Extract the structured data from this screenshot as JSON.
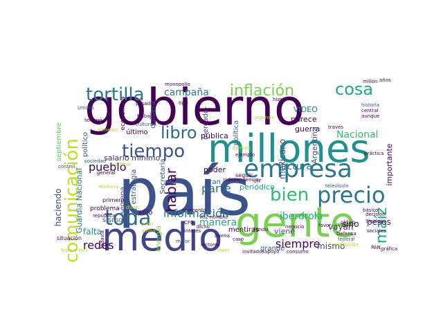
{
  "palette": [
    "#440154",
    "#472c7a",
    "#3b518b",
    "#2c718e",
    "#21908d",
    "#27ad81",
    "#5cc863",
    "#aadc32",
    "#fde725"
  ],
  "words": [
    {
      "text": "país",
      "color": "#3b528b"
    },
    {
      "text": "gobierno",
      "color": "#440154"
    },
    {
      "text": "millones",
      "color": "#21918c"
    },
    {
      "text": "gente",
      "color": "#7ad151"
    },
    {
      "text": "medio",
      "color": "#414487"
    },
    {
      "text": "empresa",
      "color": "#2a788e"
    },
    {
      "text": "comunicación",
      "color": "#bddf26"
    },
    {
      "text": "precio",
      "color": "#2a788e"
    },
    {
      "text": "toda",
      "color": "#31688e"
    },
    {
      "text": "tortilla",
      "color": "#2a788e"
    },
    {
      "text": "tiempo",
      "color": "#3b528b"
    },
    {
      "text": "bien",
      "color": "#35b779"
    },
    {
      "text": "inflación",
      "color": "#7ad151"
    },
    {
      "text": "cosa",
      "color": "#22a884"
    },
    {
      "text": "libro",
      "color": "#31688e"
    },
    {
      "text": "maíz",
      "color": "#22a884"
    },
    {
      "text": "hablar",
      "color": "#440154"
    },
    {
      "text": "información",
      "color": "#2a788e"
    },
    {
      "text": "pueblo",
      "color": "#440154"
    },
    {
      "text": "campaña",
      "color": "#2a788e"
    },
    {
      "text": "parte",
      "color": "#31688e"
    },
    {
      "text": "redes",
      "color": "#440154"
    },
    {
      "text": "siempre",
      "color": "#440154"
    },
    {
      "text": "manera",
      "color": "#22a884"
    },
    {
      "text": "lectura",
      "color": "#2a788e"
    },
    {
      "text": "Nacional",
      "color": "#35b779"
    },
    {
      "text": "iberdrola",
      "color": "#22a884"
    },
    {
      "text": "mexicano",
      "color": "#3b528b"
    },
    {
      "text": "mismo",
      "color": "#414487"
    },
    {
      "text": "sino",
      "color": "#440154"
    },
    {
      "text": "vayan",
      "color": "#472d7b"
    },
    {
      "text": "pesos",
      "color": "#482878"
    },
    {
      "text": "haciendo",
      "color": "#414487"
    },
    {
      "text": "Guardia Nacional",
      "color": "#2a788e"
    },
    {
      "text": "falta",
      "color": "#21918c"
    },
    {
      "text": "estrategia",
      "color": "#3b528b"
    },
    {
      "text": "salario mínimo",
      "color": "#472d7b"
    },
    {
      "text": "último",
      "color": "#440154"
    },
    {
      "text": "sólo",
      "color": "#440154"
    },
    {
      "text": "septiembre",
      "color": "#5ec962"
    },
    {
      "text": "político",
      "color": "#3b528b"
    },
    {
      "text": "económica",
      "color": "#440154"
    },
    {
      "text": "quisiera",
      "color": "#3b528b"
    },
    {
      "text": "mercado",
      "color": "#414487"
    },
    {
      "text": "pública",
      "color": "#440154"
    },
    {
      "text": "política",
      "color": "#31688e"
    },
    {
      "text": "periódico",
      "color": "#22a884"
    },
    {
      "text": "Secretaría",
      "color": "#3b528b"
    },
    {
      "text": "poder",
      "color": "#440154"
    },
    {
      "text": "gran",
      "color": "#3b528b"
    },
    {
      "text": "mentiras",
      "color": "#440154"
    },
    {
      "text": "viene",
      "color": "#3b528b"
    },
    {
      "text": "grande",
      "color": "#3b528b"
    },
    {
      "text": "VIDEO",
      "color": "#2a788e"
    },
    {
      "text": "parece",
      "color": "#440154"
    },
    {
      "text": "guerra",
      "color": "#440154"
    },
    {
      "text": "Argentina",
      "color": "#3b528b"
    },
    {
      "text": "importante",
      "color": "#440154"
    },
    {
      "text": "Unidos",
      "color": "#3b528b"
    },
    {
      "text": "semana",
      "color": "#3b528b"
    },
    {
      "text": "sismo",
      "color": "#3b528b"
    },
    {
      "text": "problema",
      "color": "#440154"
    },
    {
      "text": "primero",
      "color": "#440154"
    },
    {
      "text": "energía",
      "color": "#7ad151"
    },
    {
      "text": "situación",
      "color": "#440154"
    },
    {
      "text": "república",
      "color": "#440154"
    },
    {
      "text": "control",
      "color": "#3b528b"
    },
    {
      "text": "cinco",
      "color": "#440154"
    },
    {
      "text": "Fondo",
      "color": "#440154"
    },
    {
      "text": "decisión",
      "color": "#440154"
    },
    {
      "text": "alimento",
      "color": "#b5de2b"
    },
    {
      "text": "sociedad",
      "color": "#3b528b"
    },
    {
      "text": "monopolio",
      "color": "#440154"
    },
    {
      "text": "tipo",
      "color": "#440154"
    },
    {
      "text": "hoy",
      "color": "#440154"
    },
    {
      "text": "seguir",
      "color": "#440154"
    },
    {
      "text": "televisión",
      "color": "#3b528b"
    },
    {
      "text": "práctica",
      "color": "#440154"
    },
    {
      "text": "central",
      "color": "#440154"
    },
    {
      "text": "básico",
      "color": "#440154"
    },
    {
      "text": "ejemplo",
      "color": "#440154"
    },
    {
      "text": "terreno",
      "color": "#440154"
    },
    {
      "text": "mejor",
      "color": "#3b528b"
    },
    {
      "text": "sociales",
      "color": "#440154"
    },
    {
      "text": "federal",
      "color": "#3b528b"
    },
    {
      "text": "favor",
      "color": "#440154"
    },
    {
      "text": "buena",
      "color": "#440154"
    },
    {
      "text": "dicen",
      "color": "#b5de2b"
    },
    {
      "text": "Constitución",
      "color": "#b5de2b"
    },
    {
      "text": "trabajo",
      "color": "#440154"
    },
    {
      "text": "cultura",
      "color": "#3b528b"
    },
    {
      "text": "aunque",
      "color": "#440154"
    },
    {
      "text": "historia",
      "color": "#3b528b"
    },
    {
      "text": "Nueva York",
      "color": "#b5de2b"
    },
    {
      "text": "VOZ HOMBRE",
      "color": "#440154"
    },
    {
      "text": "CFE",
      "color": "#440154"
    },
    {
      "text": "PAN",
      "color": "#440154"
    },
    {
      "text": "Sinaloa",
      "color": "#440154"
    },
    {
      "text": "Defensa",
      "color": "#440154"
    },
    {
      "text": "independencia",
      "color": "#440154"
    },
    {
      "text": "segundo",
      "color": "#b5de2b"
    },
    {
      "text": "pasado",
      "color": "#440154"
    },
    {
      "text": "millón",
      "color": "#440154"
    },
    {
      "text": "hizo",
      "color": "#440154"
    },
    {
      "text": "años",
      "color": "#440154"
    },
    {
      "text": "través",
      "color": "#440154"
    },
    {
      "text": "todavía",
      "color": "#440154"
    },
    {
      "text": "primer",
      "color": "#b5de2b"
    },
    {
      "text": "general",
      "color": "#440154"
    },
    {
      "text": "lectores",
      "color": "#440154"
    },
    {
      "text": "UIF",
      "color": "#440154"
    },
    {
      "text": "Ejército",
      "color": "#b5de2b"
    },
    {
      "text": "gráfica",
      "color": "#440154"
    },
    {
      "text": "apoyo",
      "color": "#440154"
    },
    {
      "text": "consumo",
      "color": "#440154"
    },
    {
      "text": "mañana",
      "color": "#b5de2b"
    },
    {
      "text": "ocho",
      "color": "#b5de2b"
    },
    {
      "text": "arriba",
      "color": "#b5de2b"
    },
    {
      "text": "nivel",
      "color": "#b5de2b"
    },
    {
      "text": "invitados",
      "color": "#440154"
    },
    {
      "text": "negocio",
      "color": "#440154"
    },
    {
      "text": "interés",
      "color": "#440154"
    },
    {
      "text": "momento",
      "color": "#440154"
    },
    {
      "text": "caso",
      "color": "#440154"
    },
    {
      "text": "dicho",
      "color": "#440154"
    }
  ]
}
